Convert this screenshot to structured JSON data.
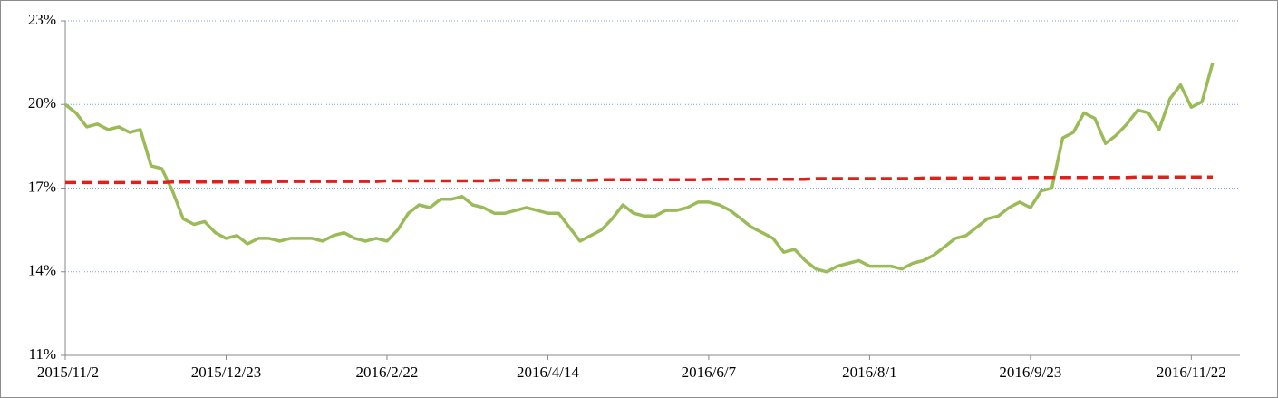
{
  "chart_data": {
    "type": "line",
    "categories": [
      "2015/11/2",
      null,
      null,
      null,
      null,
      null,
      null,
      null,
      null,
      null,
      null,
      null,
      null,
      null,
      null,
      "2015/12/23",
      null,
      null,
      null,
      null,
      null,
      null,
      null,
      null,
      null,
      null,
      null,
      null,
      null,
      null,
      "2016/2/22",
      null,
      null,
      null,
      null,
      null,
      null,
      null,
      null,
      null,
      null,
      null,
      null,
      null,
      null,
      "2016/4/14",
      null,
      null,
      null,
      null,
      null,
      null,
      null,
      null,
      null,
      null,
      null,
      null,
      null,
      null,
      "2016/6/7",
      null,
      null,
      null,
      null,
      null,
      null,
      null,
      null,
      null,
      null,
      null,
      null,
      null,
      null,
      "2016/8/1",
      null,
      null,
      null,
      null,
      null,
      null,
      null,
      null,
      null,
      null,
      null,
      null,
      null,
      null,
      "2016/9/23",
      null,
      null,
      null,
      null,
      null,
      null,
      null,
      null,
      null,
      null,
      null,
      null,
      null,
      null,
      "2016/11/22",
      null,
      null
    ],
    "series": [
      {
        "color": "#9bbb59",
        "values": [
          20.0,
          19.7,
          19.2,
          19.3,
          19.1,
          19.2,
          19.0,
          19.1,
          17.8,
          17.7,
          16.9,
          15.9,
          15.7,
          15.8,
          15.4,
          15.2,
          15.3,
          15.0,
          15.2,
          15.2,
          15.1,
          15.2,
          15.2,
          15.2,
          15.1,
          15.3,
          15.4,
          15.2,
          15.1,
          15.2,
          15.1,
          15.5,
          16.1,
          16.4,
          16.3,
          16.6,
          16.6,
          16.7,
          16.4,
          16.3,
          16.1,
          16.1,
          16.2,
          16.3,
          16.2,
          16.1,
          16.1,
          15.6,
          15.1,
          15.3,
          15.5,
          15.9,
          16.4,
          16.1,
          16.0,
          16.0,
          16.2,
          16.2,
          16.3,
          16.5,
          16.5,
          16.4,
          16.2,
          15.9,
          15.6,
          15.4,
          15.2,
          14.7,
          14.8,
          14.4,
          14.1,
          14.0,
          14.2,
          14.3,
          14.4,
          14.2,
          14.2,
          14.2,
          14.1,
          14.3,
          14.4,
          14.6,
          14.9,
          15.2,
          15.3,
          15.6,
          15.9,
          16.0,
          16.3,
          16.5,
          16.3,
          16.9,
          17.0,
          18.8,
          19.0,
          19.7,
          19.5,
          18.6,
          18.9,
          19.3,
          19.8,
          19.7,
          19.1,
          20.2,
          20.7,
          19.9,
          20.1,
          21.5
        ]
      },
      {
        "color": "#e0201b",
        "dashed": true,
        "values": [
          17.2,
          17.2,
          17.2,
          17.2,
          17.2,
          17.2,
          17.2,
          17.2,
          17.2,
          17.2,
          17.22,
          17.22,
          17.22,
          17.22,
          17.22,
          17.22,
          17.22,
          17.22,
          17.22,
          17.22,
          17.24,
          17.24,
          17.24,
          17.24,
          17.24,
          17.24,
          17.24,
          17.24,
          17.24,
          17.24,
          17.26,
          17.26,
          17.26,
          17.26,
          17.26,
          17.26,
          17.26,
          17.26,
          17.26,
          17.26,
          17.28,
          17.28,
          17.28,
          17.28,
          17.28,
          17.28,
          17.28,
          17.28,
          17.28,
          17.28,
          17.3,
          17.3,
          17.3,
          17.3,
          17.3,
          17.3,
          17.3,
          17.3,
          17.3,
          17.3,
          17.32,
          17.32,
          17.32,
          17.32,
          17.32,
          17.32,
          17.32,
          17.32,
          17.32,
          17.32,
          17.34,
          17.34,
          17.34,
          17.34,
          17.34,
          17.34,
          17.34,
          17.34,
          17.34,
          17.34,
          17.36,
          17.36,
          17.36,
          17.36,
          17.36,
          17.36,
          17.36,
          17.36,
          17.36,
          17.36,
          17.38,
          17.38,
          17.38,
          17.38,
          17.38,
          17.38,
          17.38,
          17.38,
          17.38,
          17.38,
          17.4,
          17.4,
          17.4,
          17.4,
          17.4,
          17.4,
          17.4,
          17.4
        ]
      }
    ],
    "ylim": [
      11,
      23
    ],
    "yticks": [
      {
        "value": 11,
        "label": "11%"
      },
      {
        "value": 14,
        "label": "14%"
      },
      {
        "value": 17,
        "label": "17%"
      },
      {
        "value": 20,
        "label": "20%"
      },
      {
        "value": 23,
        "label": "23%"
      }
    ],
    "grid": true
  }
}
